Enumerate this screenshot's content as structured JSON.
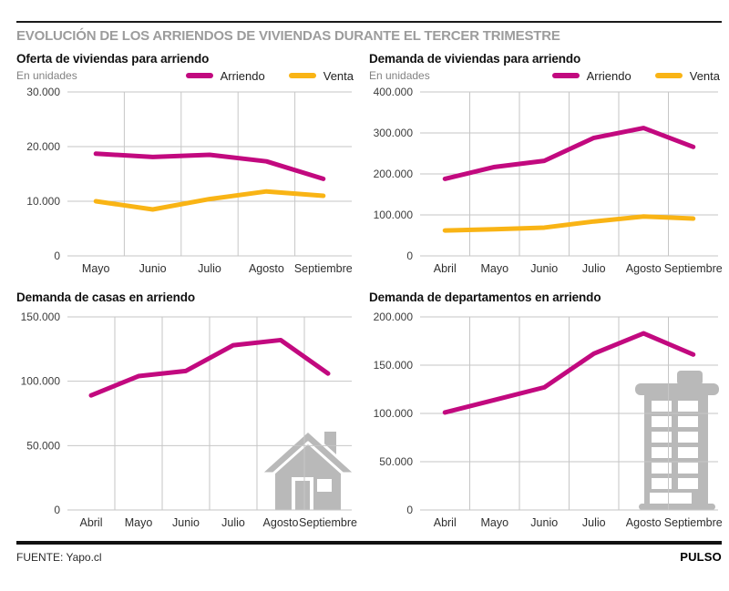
{
  "header": {
    "title": "EVOLUCIÓN DE LOS ARRIENDOS DE VIVIENDAS DURANTE EL TERCER TRIMESTRE"
  },
  "footer": {
    "source": "FUENTE: Yapo.cl",
    "brand": "PULSO"
  },
  "colors": {
    "arriendo": "#C2097F",
    "venta": "#F9B415",
    "grid": "#c6c6c6",
    "icon": "#b9b9b9",
    "title_gray": "#9c9c9c"
  },
  "chart_data": [
    {
      "type": "line",
      "title": "Oferta de viviendas para arriendo",
      "subtitle": "En unidades",
      "categories": [
        "Mayo",
        "Junio",
        "Julio",
        "Agosto",
        "Septiembre"
      ],
      "series": [
        {
          "name": "Arriendo",
          "color": "#C2097F",
          "values": [
            18700,
            18100,
            18500,
            17300,
            14100
          ]
        },
        {
          "name": "Venta",
          "color": "#F9B415",
          "values": [
            10000,
            8500,
            10400,
            11800,
            11000
          ]
        }
      ],
      "ylim": [
        0,
        30000
      ],
      "yticks": [
        0,
        10000,
        20000,
        30000
      ],
      "ytick_labels": [
        "0",
        "10.000",
        "20.000",
        "30.000"
      ],
      "legend": true,
      "legend_position": "top-right",
      "grid": true
    },
    {
      "type": "line",
      "title": "Demanda de viviendas para arriendo",
      "subtitle": "En unidades",
      "categories": [
        "Abril",
        "Mayo",
        "Junio",
        "Julio",
        "Agosto",
        "Septiembre"
      ],
      "series": [
        {
          "name": "Arriendo",
          "color": "#C2097F",
          "values": [
            188000,
            217000,
            232000,
            288000,
            312000,
            266000
          ]
        },
        {
          "name": "Venta",
          "color": "#F9B415",
          "values": [
            62000,
            65000,
            69000,
            84000,
            96000,
            91000
          ]
        }
      ],
      "ylim": [
        0,
        400000
      ],
      "yticks": [
        0,
        100000,
        200000,
        300000,
        400000
      ],
      "ytick_labels": [
        "0",
        "100.000",
        "200.000",
        "300.000",
        "400.000"
      ],
      "legend": true,
      "legend_position": "top-right",
      "grid": true
    },
    {
      "type": "line",
      "title": "Demanda de casas en arriendo",
      "subtitle": "",
      "categories": [
        "Abril",
        "Mayo",
        "Junio",
        "Julio",
        "Agosto",
        "Septiembre"
      ],
      "series": [
        {
          "name": "Arriendo",
          "color": "#C2097F",
          "values": [
            89000,
            104000,
            108000,
            128000,
            132000,
            106000
          ]
        }
      ],
      "ylim": [
        0,
        150000
      ],
      "yticks": [
        0,
        50000,
        100000,
        150000
      ],
      "ytick_labels": [
        "0",
        "50.000",
        "100.000",
        "150.000"
      ],
      "legend": false,
      "grid": true
    },
    {
      "type": "line",
      "title": "Demanda de departamentos en arriendo",
      "subtitle": "",
      "categories": [
        "Abril",
        "Mayo",
        "Junio",
        "Julio",
        "Agosto",
        "Septiembre"
      ],
      "series": [
        {
          "name": "Arriendo",
          "color": "#C2097F",
          "values": [
            101000,
            114000,
            127000,
            162000,
            183000,
            161000
          ]
        }
      ],
      "ylim": [
        0,
        200000
      ],
      "yticks": [
        0,
        50000,
        100000,
        150000,
        200000
      ],
      "ytick_labels": [
        "0",
        "50.000",
        "100.000",
        "150.000",
        "200.000"
      ],
      "legend": false,
      "grid": true
    }
  ]
}
